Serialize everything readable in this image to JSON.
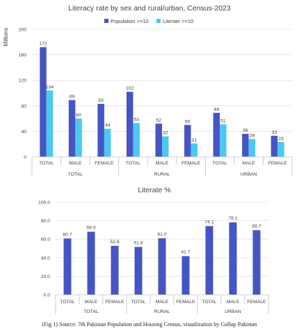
{
  "caption": "(Fig 1) Source: 7th Pakistan Population and Housing Census, visualization by Gallup Pakistan",
  "chart_data": [
    {
      "type": "bar",
      "title": "Literacy rate by sex and rural/urban, Census-2023",
      "ylabel": "Millions",
      "xlabel": "",
      "ylim": [
        0,
        200
      ],
      "yticks": [
        0,
        40,
        80,
        120,
        160,
        200
      ],
      "grid": true,
      "legend_position": "top",
      "categories": [
        "TOTAL",
        "MALE",
        "FEMALE",
        "TOTAL",
        "MALE",
        "FEMALE",
        "TOTAL",
        "MALE",
        "FEMALE"
      ],
      "groups": [
        "TOTAL",
        "RURAL",
        "URBAN"
      ],
      "series": [
        {
          "name": "Population >=10",
          "color": "#4655c4",
          "values": [
            172,
            89,
            83,
            102,
            52,
            50,
            69,
            36,
            33
          ]
        },
        {
          "name": "Literate >=10",
          "color": "#4cc8f2",
          "values": [
            104,
            60,
            44,
            53,
            32,
            21,
            51,
            28,
            23
          ]
        }
      ]
    },
    {
      "type": "bar",
      "title": "Literate %",
      "ylabel": "",
      "xlabel": "",
      "ylim": [
        0,
        100
      ],
      "yticks": [
        "0.0",
        "20.0",
        "40.0",
        "60.0",
        "80.0",
        "100.0"
      ],
      "grid": true,
      "categories": [
        "TOTAL",
        "MALE",
        "FEMALE",
        "TOTAL",
        "MALE",
        "FEMALE",
        "TOTAL",
        "MALE",
        "FEMALE"
      ],
      "groups": [
        "TOTAL",
        "RURAL",
        "URBAN"
      ],
      "series": [
        {
          "name": "",
          "color": "#4655c4",
          "values": [
            60.7,
            68.0,
            52.8,
            51.6,
            61.0,
            41.7,
            74.1,
            78.1,
            69.7
          ],
          "labels": [
            "60.7",
            "68.0",
            "52.8",
            "51.6",
            "61.0",
            "41.7",
            "74.1",
            "78.1",
            "69.7"
          ]
        }
      ]
    }
  ]
}
